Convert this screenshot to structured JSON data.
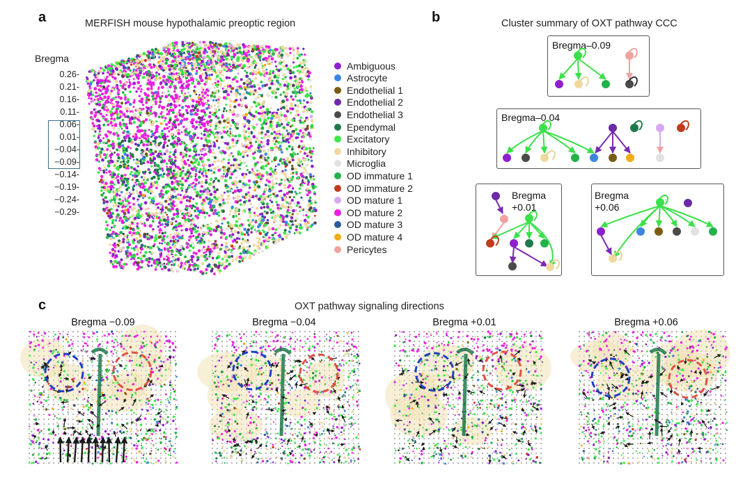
{
  "panel_a": {
    "letter": "a",
    "title": "MERFISH mouse hypothalamic preoptic region",
    "axis_label": "Bregma",
    "ticks": [
      "0.26-",
      "0.21-",
      "0.16-",
      "0.11-",
      "0.06-",
      "0.01-",
      "−0.04-",
      "−0.09-",
      "−0.14-",
      "−0.19-",
      "−0.24-",
      "−0.29-"
    ],
    "legend": [
      {
        "label": "Ambiguous",
        "color": "#8e1fcf"
      },
      {
        "label": "Astrocyte",
        "color": "#3d86e0"
      },
      {
        "label": "Endothelial 1",
        "color": "#7a5c12"
      },
      {
        "label": "Endothelial 2",
        "color": "#6b2aa8"
      },
      {
        "label": "Endothelial 3",
        "color": "#4a4a4a"
      },
      {
        "label": "Ependymal",
        "color": "#1e7a4c"
      },
      {
        "label": "Excitatory",
        "color": "#3ce84a"
      },
      {
        "label": "Inhibitory",
        "color": "#f0d9a0"
      },
      {
        "label": "Microglia",
        "color": "#e2e2e2"
      },
      {
        "label": "OD immature 1",
        "color": "#24b24b"
      },
      {
        "label": "OD immature 2",
        "color": "#c23b1c"
      },
      {
        "label": "OD mature 1",
        "color": "#d7a8ef"
      },
      {
        "label": "OD mature 2",
        "color": "#ec1fe0"
      },
      {
        "label": "OD mature 3",
        "color": "#2c5c98"
      },
      {
        "label": "OD mature 4",
        "color": "#f0ad14"
      },
      {
        "label": "Pericytes",
        "color": "#f2a1a1"
      }
    ]
  },
  "panel_b": {
    "letter": "b",
    "title": "Cluster summary of OXT pathway CCC",
    "boxes": [
      {
        "label": "Bregma–0.09"
      },
      {
        "label": "Bregma–0.04"
      },
      {
        "label_line1": "Bregma",
        "label_line2": "+0.01"
      },
      {
        "label_line1": "Bregma",
        "label_line2": "+0.06"
      }
    ]
  },
  "panel_c": {
    "letter": "c",
    "title": "OXT pathway signaling directions",
    "sections": [
      "Bregma −0.09",
      "Bregma −0.04",
      "Bregma +0.01",
      "Bregma +0.06"
    ]
  },
  "colors": {
    "green_edge": "#3be04a",
    "purple_edge": "#7a2ab0",
    "pink_edge": "#f2a1a1",
    "circle_blue": "#1f3fbf",
    "circle_red": "#e0503f",
    "highlight_box": "#3b6f86"
  }
}
